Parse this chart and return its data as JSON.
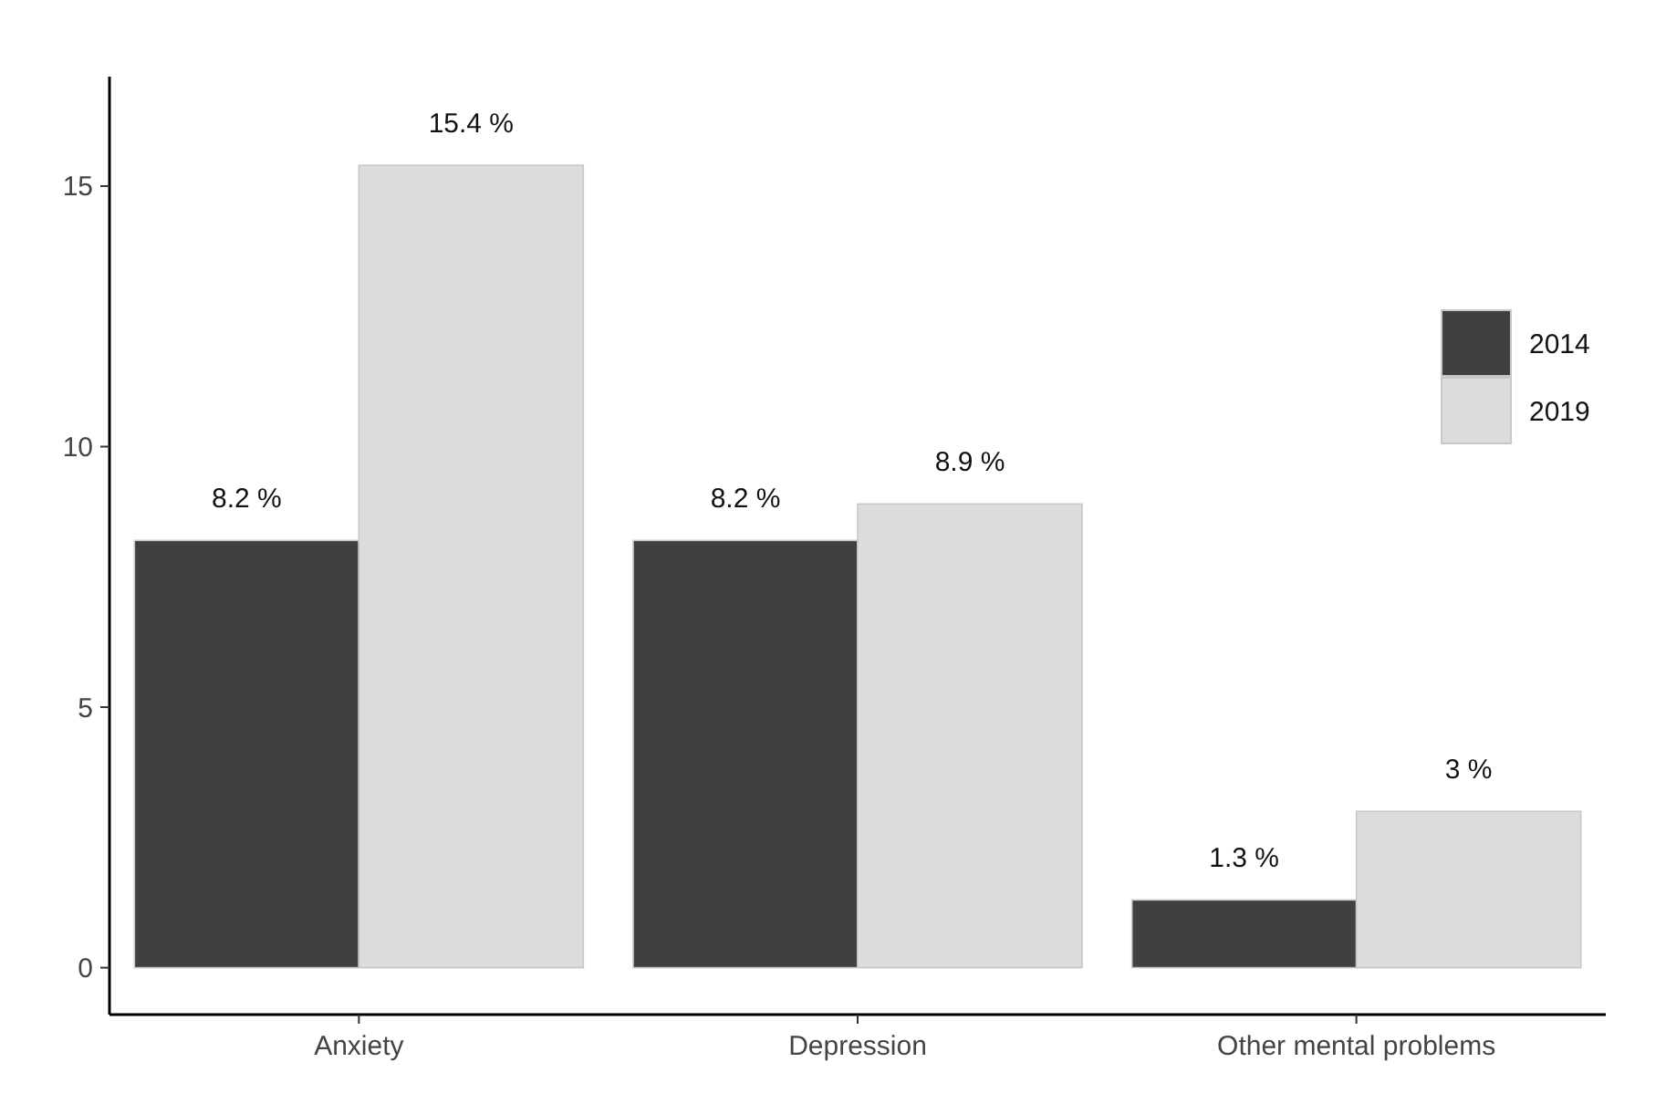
{
  "chart_data": {
    "type": "bar",
    "categories": [
      "Anxiety",
      "Depression",
      "Other mental problems"
    ],
    "series": [
      {
        "name": "2014",
        "color": "#404040",
        "values": [
          8.2,
          8.2,
          1.3
        ],
        "value_labels": [
          "8.2 %",
          "8.2 %",
          "1.3 %"
        ]
      },
      {
        "name": "2019",
        "color": "#dcdcdc",
        "values": [
          15.4,
          8.9,
          3
        ],
        "value_labels": [
          "15.4 %",
          "8.9 %",
          "3 %"
        ]
      }
    ],
    "ylim": [
      -0.9,
      17.1
    ],
    "yticks": [
      0,
      5,
      10,
      15
    ],
    "grid": false,
    "legend": "right"
  }
}
